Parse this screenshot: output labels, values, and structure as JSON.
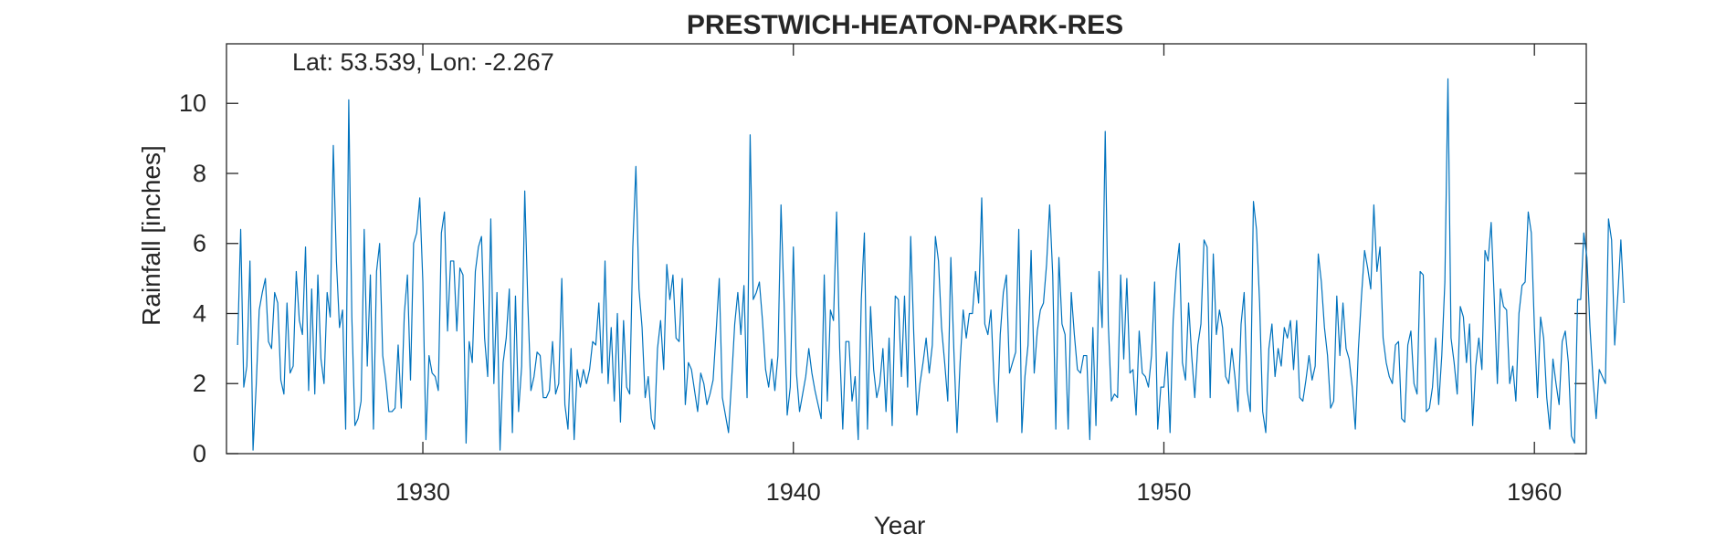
{
  "chart_data": {
    "type": "line",
    "title": "PRESTWICH-HEATON-PARK-RES",
    "annotation": "Lat: 53.539, Lon: -2.267",
    "xlabel": "Year",
    "ylabel": "Rainfall [inches]",
    "xlim": [
      1924.7,
      1961.4
    ],
    "ylim": [
      0,
      11.7
    ],
    "xticks": [
      1930,
      1940,
      1950,
      1960
    ],
    "xtick_labels": [
      "1930",
      "1940",
      "1950",
      "1960"
    ],
    "yticks": [
      0,
      2,
      4,
      6,
      8,
      10
    ],
    "ytick_labels": [
      "0",
      "2",
      "4",
      "6",
      "8",
      "10"
    ],
    "grid": false,
    "box": true,
    "colors": {
      "line": "#0072BD",
      "axes": "#262626"
    },
    "series": [
      {
        "x_start": "1925-01",
        "x_end": "1960-12",
        "values": [
          3.1,
          6.4,
          1.9,
          2.5,
          5.5,
          0.1,
          1.9,
          4.1,
          4.6,
          5.0,
          3.2,
          3.0,
          4.6,
          4.3,
          2.1,
          1.7,
          4.3,
          2.3,
          2.5,
          5.2,
          3.8,
          3.4,
          5.9,
          1.8,
          4.7,
          1.7,
          5.1,
          2.7,
          2.0,
          4.6,
          3.9,
          8.8,
          5.5,
          3.6,
          4.1,
          0.7,
          10.1,
          3.9,
          0.8,
          1.0,
          1.5,
          6.4,
          2.5,
          5.1,
          0.7,
          5.2,
          6.0,
          2.8,
          2.1,
          1.2,
          1.2,
          1.3,
          3.1,
          1.3,
          4.0,
          5.1,
          2.1,
          6.0,
          6.3,
          7.3,
          4.9,
          0.4,
          2.8,
          2.3,
          2.2,
          1.8,
          6.3,
          6.9,
          3.5,
          5.5,
          5.5,
          3.5,
          5.3,
          5.1,
          0.3,
          3.2,
          2.6,
          5.2,
          5.9,
          6.2,
          3.3,
          2.2,
          6.7,
          2.0,
          4.6,
          0.1,
          2.6,
          3.3,
          4.7,
          0.6,
          4.5,
          1.2,
          2.5,
          7.5,
          4.3,
          1.8,
          2.2,
          2.9,
          2.8,
          1.6,
          1.6,
          1.8,
          3.2,
          1.7,
          2.0,
          5.0,
          1.4,
          0.7,
          3.0,
          0.4,
          2.4,
          1.9,
          2.4,
          2.0,
          2.4,
          3.2,
          3.1,
          4.3,
          2.3,
          5.5,
          2.0,
          3.6,
          1.5,
          4.0,
          0.9,
          3.8,
          1.9,
          1.7,
          5.9,
          8.2,
          4.7,
          3.6,
          1.6,
          2.2,
          1.0,
          0.7,
          3.0,
          3.8,
          2.4,
          5.4,
          4.4,
          5.1,
          3.3,
          3.2,
          5.0,
          1.4,
          2.6,
          2.4,
          1.8,
          1.2,
          2.3,
          2.0,
          1.4,
          1.7,
          2.1,
          3.5,
          5.0,
          1.6,
          1.1,
          0.6,
          2.1,
          3.7,
          4.6,
          3.4,
          4.8,
          1.6,
          9.1,
          4.4,
          4.6,
          4.9,
          3.8,
          2.4,
          1.9,
          2.7,
          1.8,
          2.8,
          7.1,
          4.3,
          1.1,
          1.9,
          5.9,
          2.3,
          1.2,
          1.7,
          2.2,
          3.0,
          2.3,
          1.8,
          1.4,
          1.0,
          5.1,
          1.5,
          4.1,
          3.8,
          6.9,
          3.0,
          0.7,
          3.2,
          3.2,
          1.5,
          2.2,
          0.4,
          4.4,
          6.3,
          0.7,
          4.2,
          2.4,
          1.6,
          2.0,
          3.0,
          1.2,
          3.3,
          0.8,
          4.5,
          4.4,
          2.2,
          4.5,
          1.9,
          6.2,
          3.4,
          1.1,
          2.0,
          2.6,
          3.3,
          2.3,
          3.1,
          6.2,
          5.5,
          3.6,
          2.6,
          1.5,
          5.6,
          2.9,
          0.6,
          2.6,
          4.1,
          3.3,
          4.0,
          4.0,
          5.2,
          4.3,
          7.3,
          3.7,
          3.4,
          4.1,
          2.0,
          0.9,
          3.4,
          4.6,
          5.1,
          2.3,
          2.6,
          2.9,
          6.4,
          0.6,
          2.2,
          3.1,
          5.8,
          2.3,
          3.5,
          4.1,
          4.3,
          5.4,
          7.1,
          5.1,
          0.7,
          5.6,
          3.7,
          3.4,
          0.7,
          4.6,
          3.4,
          2.4,
          2.3,
          2.8,
          2.8,
          0.4,
          3.6,
          0.8,
          5.2,
          3.6,
          9.2,
          3.7,
          1.5,
          1.7,
          1.6,
          5.1,
          2.7,
          5.0,
          2.3,
          2.4,
          1.1,
          3.5,
          2.3,
          2.2,
          1.9,
          2.8,
          4.9,
          0.7,
          1.9,
          1.9,
          2.9,
          0.6,
          3.8,
          5.2,
          6.0,
          2.6,
          2.1,
          4.3,
          2.8,
          1.6,
          3.1,
          3.7,
          6.1,
          5.9,
          1.6,
          5.7,
          3.4,
          4.1,
          3.6,
          2.2,
          2.0,
          3.0,
          2.2,
          1.2,
          3.7,
          4.6,
          1.8,
          1.2,
          7.2,
          6.4,
          4.3,
          1.2,
          0.6,
          3.0,
          3.7,
          2.2,
          3.0,
          2.5,
          3.6,
          3.3,
          3.8,
          2.4,
          3.8,
          1.6,
          1.5,
          2.1,
          2.8,
          2.1,
          2.5,
          5.7,
          4.9,
          3.6,
          2.8,
          1.3,
          1.5,
          4.5,
          2.8,
          4.3,
          3.0,
          2.7,
          1.9,
          0.7,
          3.0,
          4.5,
          5.8,
          5.3,
          4.7,
          7.1,
          5.2,
          5.9,
          3.3,
          2.6,
          2.2,
          2.0,
          3.1,
          3.2,
          1.0,
          0.9,
          3.1,
          3.5,
          2.0,
          1.7,
          5.2,
          5.1,
          1.2,
          1.3,
          1.9,
          3.3,
          1.4,
          2.8,
          4.9,
          10.7,
          3.3,
          2.6,
          1.7,
          4.2,
          3.9,
          2.6,
          3.7,
          0.8,
          2.5,
          3.3,
          2.4,
          5.8,
          5.5,
          6.6,
          4.4,
          2.0,
          4.7,
          4.2,
          4.1,
          2.0,
          2.5,
          1.5,
          4.0,
          4.8,
          4.9,
          6.9,
          6.3,
          3.6,
          1.6,
          3.9,
          3.3,
          1.6,
          0.7,
          2.7,
          2.0,
          1.4,
          3.2,
          3.5,
          2.6,
          0.5,
          0.3,
          4.4,
          4.4,
          6.3,
          5.6,
          3.6,
          2.1,
          1.0,
          2.4,
          2.2,
          2.0,
          6.7,
          6.1,
          3.1,
          4.5,
          6.1,
          4.3
        ]
      }
    ]
  }
}
